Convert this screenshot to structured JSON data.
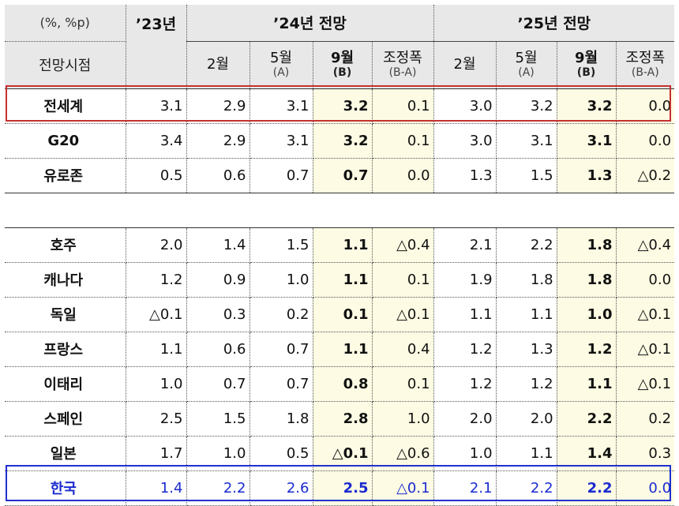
{
  "header": {
    "unit": "(%, %p)",
    "point_label": "전망시점",
    "base_year": "’23년",
    "groups": [
      {
        "title": "’24년 전망",
        "cols": [
          {
            "label": "2월",
            "sub": ""
          },
          {
            "label": "5월",
            "sub": "(A)"
          },
          {
            "label": "9월",
            "sub": "(B)"
          },
          {
            "label": "조정폭",
            "sub": "(B-A)"
          }
        ]
      },
      {
        "title": "’25년 전망",
        "cols": [
          {
            "label": "2월",
            "sub": ""
          },
          {
            "label": "5월",
            "sub": "(A)"
          },
          {
            "label": "9월",
            "sub": "(B)"
          },
          {
            "label": "조정폭",
            "sub": "(B-A)"
          }
        ]
      }
    ]
  },
  "neg_symbol": "△",
  "rows_top": [
    {
      "country": "전세계",
      "y23": "3.1",
      "y24": [
        "2.9",
        "3.1",
        "3.2",
        "0.1"
      ],
      "y25": [
        "3.0",
        "3.2",
        "3.2",
        "0.0"
      ]
    },
    {
      "country": "G20",
      "y23": "3.4",
      "y24": [
        "2.9",
        "3.1",
        "3.2",
        "0.1"
      ],
      "y25": [
        "3.0",
        "3.1",
        "3.1",
        "0.0"
      ]
    },
    {
      "country": "유로존",
      "y23": "0.5",
      "y24": [
        "0.6",
        "0.7",
        "0.7",
        "0.0"
      ],
      "y25": [
        "1.3",
        "1.5",
        "1.3",
        "△0.2"
      ]
    }
  ],
  "rows_bottom": [
    {
      "country": "호주",
      "y23": "2.0",
      "y24": [
        "1.4",
        "1.5",
        "1.1",
        "△0.4"
      ],
      "y25": [
        "2.1",
        "2.2",
        "1.8",
        "△0.4"
      ]
    },
    {
      "country": "캐나다",
      "y23": "1.2",
      "y24": [
        "0.9",
        "1.0",
        "1.1",
        "0.1"
      ],
      "y25": [
        "1.9",
        "1.8",
        "1.8",
        "0.0"
      ]
    },
    {
      "country": "독일",
      "y23": "△0.1",
      "y24": [
        "0.3",
        "0.2",
        "0.1",
        "△0.1"
      ],
      "y25": [
        "1.1",
        "1.1",
        "1.0",
        "△0.1"
      ]
    },
    {
      "country": "프랑스",
      "y23": "1.1",
      "y24": [
        "0.6",
        "0.7",
        "1.1",
        "0.4"
      ],
      "y25": [
        "1.2",
        "1.3",
        "1.2",
        "△0.1"
      ]
    },
    {
      "country": "이태리",
      "y23": "1.0",
      "y24": [
        "0.7",
        "0.7",
        "0.8",
        "0.1"
      ],
      "y25": [
        "1.2",
        "1.2",
        "1.1",
        "△0.1"
      ]
    },
    {
      "country": "스페인",
      "y23": "2.5",
      "y24": [
        "1.5",
        "1.8",
        "2.8",
        "1.0"
      ],
      "y25": [
        "2.0",
        "2.0",
        "2.2",
        "0.2"
      ]
    },
    {
      "country": "일본",
      "y23": "1.7",
      "y24": [
        "1.0",
        "0.5",
        "△0.1",
        "△0.6"
      ],
      "y25": [
        "1.0",
        "1.1",
        "1.4",
        "0.3"
      ]
    },
    {
      "country": "한국",
      "y23": "1.4",
      "y24": [
        "2.2",
        "2.6",
        "2.5",
        "△0.1"
      ],
      "y25": [
        "2.1",
        "2.2",
        "2.2",
        "0.0"
      ]
    }
  ]
}
